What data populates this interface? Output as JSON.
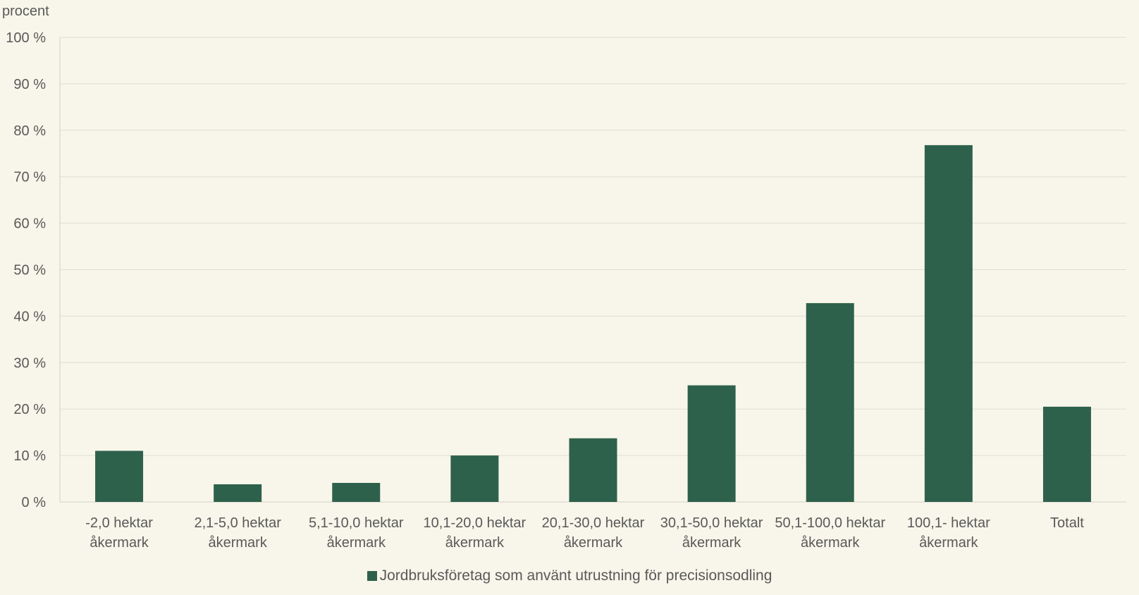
{
  "chart_data": {
    "type": "bar",
    "ylabel": "procent",
    "ylim": [
      0,
      100
    ],
    "yticks": [
      "0 %",
      "10 %",
      "20 %",
      "30 %",
      "40 %",
      "50 %",
      "60 %",
      "70 %",
      "80 %",
      "90 %",
      "100 %"
    ],
    "categories": [
      [
        "-2,0 hektar",
        "åkermark"
      ],
      [
        "2,1-5,0 hektar",
        "åkermark"
      ],
      [
        "5,1-10,0 hektar",
        "åkermark"
      ],
      [
        "10,1-20,0 hektar",
        "åkermark"
      ],
      [
        "20,1-30,0 hektar",
        "åkermark"
      ],
      [
        "30,1-50,0 hektar",
        "åkermark"
      ],
      [
        "50,1-100,0 hektar",
        "åkermark"
      ],
      [
        "100,1- hektar",
        "åkermark"
      ],
      [
        "Totalt"
      ]
    ],
    "series": [
      {
        "name": "Jordbruksföretag som använt utrustning för precisionsodling",
        "values": [
          11,
          3.8,
          4.1,
          10,
          13.7,
          25.1,
          42.8,
          76.8,
          20.5
        ],
        "color": "#2e614c"
      }
    ],
    "grid": true,
    "legend_position": "bottom"
  }
}
